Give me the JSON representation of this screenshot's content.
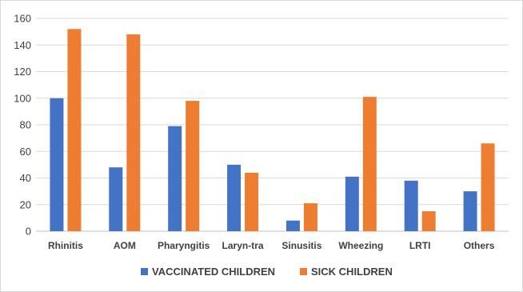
{
  "chart_data": {
    "type": "bar",
    "categories": [
      "Rhinitis",
      "AOM",
      "Pharyngitis",
      "Laryn-tra",
      "Sinusitis",
      "Wheezing",
      "LRTI",
      "Others"
    ],
    "series": [
      {
        "name": "VACCINATED CHILDREN",
        "color": "#4472c4",
        "values": [
          100,
          48,
          79,
          50,
          8,
          41,
          38,
          30
        ]
      },
      {
        "name": "SICK CHILDREN",
        "color": "#ed7d31",
        "values": [
          152,
          148,
          98,
          44,
          21,
          101,
          15,
          66
        ]
      }
    ],
    "yticks": [
      "0",
      "20",
      "40",
      "60",
      "80",
      "100",
      "120",
      "140",
      "160"
    ],
    "ylim": [
      0,
      160
    ],
    "grid": true,
    "legend_position": "bottom"
  }
}
